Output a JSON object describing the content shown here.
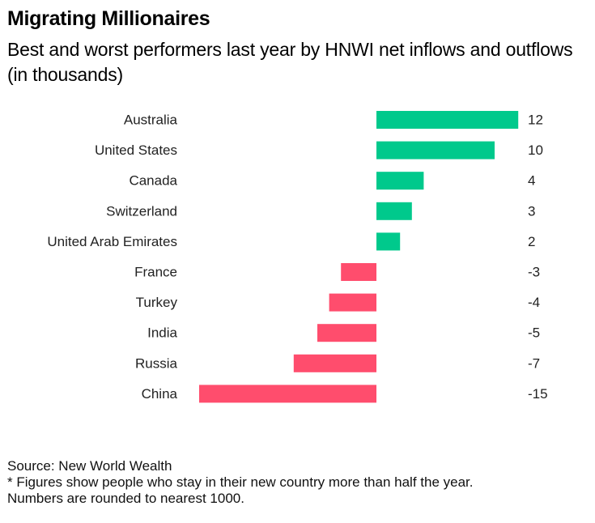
{
  "header": {
    "title": "Migrating Millionaires",
    "subtitle": "Best and worst performers last year by HNWI net inflows and outflows (in thousands)"
  },
  "chart_data": {
    "type": "bar",
    "orientation": "horizontal",
    "categories": [
      "Australia",
      "United States",
      "Canada",
      "Switzerland",
      "United Arab Emirates",
      "France",
      "Turkey",
      "India",
      "Russia",
      "China"
    ],
    "values": [
      12,
      10,
      4,
      3,
      2,
      -3,
      -4,
      -5,
      -7,
      -15
    ],
    "value_labels": [
      "12",
      "10",
      "4",
      "3",
      "2",
      "-3",
      "-4",
      "-5",
      "-7",
      "-15"
    ],
    "xlim": [
      -15,
      12
    ],
    "grid": false,
    "legend": "none",
    "colors": {
      "positive": "#00c98c",
      "negative": "#ff4d6d"
    }
  },
  "footer": {
    "source": "Source: New World Wealth",
    "note_line1": "* Figures show people who stay in their new country more than half the year.",
    "note_line2": "Numbers are rounded to nearest 1000."
  }
}
